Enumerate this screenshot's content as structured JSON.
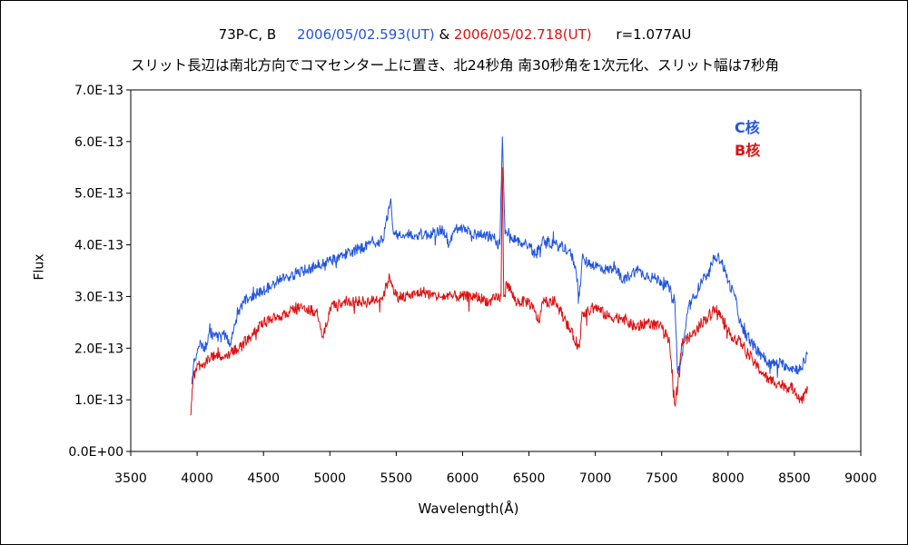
{
  "header": {
    "object": "73P-C, B",
    "date_c": "2006/05/02.593(UT)",
    "amp": "&",
    "date_b": "2006/05/02.718(UT)",
    "distance": "r=1.077AU",
    "subtitle": "スリット長辺は南北方向でコマセンター上に置き、北24秒角 南30秒角を1次元化、スリット幅は7秒角"
  },
  "colors": {
    "c": "#2255dd",
    "b": "#dd1111"
  },
  "chart_data": {
    "type": "line",
    "xlabel": "Wavelength(Å)",
    "ylabel": "Flux",
    "xlim": [
      3500,
      9000
    ],
    "ylim": [
      0,
      7e-13
    ],
    "xticks": [
      3500,
      4000,
      4500,
      5000,
      5500,
      6000,
      6500,
      7000,
      7500,
      8000,
      8500,
      9000
    ],
    "yticks": [
      0,
      1e-13,
      2e-13,
      3e-13,
      4e-13,
      5e-13,
      6e-13,
      7e-13
    ],
    "ytick_labels": [
      "0.0E+00",
      "1.0E-13",
      "2.0E-13",
      "3.0E-13",
      "4.0E-13",
      "5.0E-13",
      "6.0E-13",
      "7.0E-13"
    ],
    "legend": [
      "C核",
      "B核"
    ],
    "series": [
      {
        "name": "C核",
        "color": "#2255dd",
        "x": [
          3960,
          3980,
          4000,
          4030,
          4060,
          4100,
          4150,
          4200,
          4250,
          4300,
          4350,
          4400,
          4500,
          4600,
          4700,
          4800,
          4900,
          5000,
          5100,
          5200,
          5300,
          5400,
          5460,
          5480,
          5550,
          5650,
          5750,
          5850,
          5900,
          5950,
          6000,
          6100,
          6200,
          6280,
          6300,
          6320,
          6380,
          6500,
          6550,
          6600,
          6700,
          6800,
          6850,
          6880,
          6900,
          7000,
          7100,
          7150,
          7200,
          7300,
          7400,
          7500,
          7550,
          7600,
          7620,
          7650,
          7700,
          7750,
          7800,
          7850,
          7900,
          7950,
          8000,
          8050,
          8100,
          8200,
          8250,
          8300,
          8400,
          8500,
          8550,
          8600
        ],
        "y": [
          1.3e-13,
          1.8e-13,
          1.9e-13,
          2.1e-13,
          2e-13,
          2.3e-13,
          2.2e-13,
          2.3e-13,
          2.1e-13,
          2.6e-13,
          2.9e-13,
          3e-13,
          3.1e-13,
          3.3e-13,
          3.4e-13,
          3.5e-13,
          3.6e-13,
          3.7e-13,
          3.8e-13,
          3.9e-13,
          4e-13,
          4.1e-13,
          4.9e-13,
          4.2e-13,
          4.2e-13,
          4.2e-13,
          4.2e-13,
          4.3e-13,
          4e-13,
          4.3e-13,
          4.3e-13,
          4.2e-13,
          4.2e-13,
          4e-13,
          6.1e-13,
          4.2e-13,
          4.1e-13,
          4e-13,
          3.8e-13,
          4.1e-13,
          4e-13,
          3.9e-13,
          3.6e-13,
          3e-13,
          3.7e-13,
          3.6e-13,
          3.5e-13,
          3.6e-13,
          3.3e-13,
          3.5e-13,
          3.4e-13,
          3.3e-13,
          3.2e-13,
          2.9e-13,
          1.5e-13,
          1.8e-13,
          2.8e-13,
          3e-13,
          3.3e-13,
          3.4e-13,
          3.8e-13,
          3.7e-13,
          3.3e-13,
          3e-13,
          2.4e-13,
          2e-13,
          1.9e-13,
          1.7e-13,
          1.7e-13,
          1.6e-13,
          1.6e-13,
          1.9e-13
        ]
      },
      {
        "name": "B核",
        "color": "#dd1111",
        "x": [
          3950,
          3960,
          3970,
          3990,
          4000,
          4050,
          4100,
          4150,
          4200,
          4250,
          4300,
          4400,
          4500,
          4600,
          4700,
          4800,
          4900,
          4950,
          5000,
          5100,
          5200,
          5300,
          5400,
          5450,
          5500,
          5600,
          5700,
          5800,
          6000,
          6100,
          6200,
          6290,
          6300,
          6310,
          6330,
          6400,
          6500,
          6580,
          6600,
          6700,
          6880,
          6900,
          6950,
          7000,
          7100,
          7200,
          7300,
          7400,
          7500,
          7560,
          7600,
          7620,
          7650,
          7700,
          7750,
          7800,
          7850,
          7900,
          7950,
          8000,
          8100,
          8200,
          8300,
          8400,
          8500,
          8550,
          8600
        ],
        "y": [
          7e-14,
          1e-13,
          1.4e-13,
          1.6e-13,
          1.7e-13,
          1.7e-13,
          1.8e-13,
          1.9e-13,
          1.8e-13,
          1.9e-13,
          2e-13,
          2.2e-13,
          2.5e-13,
          2.6e-13,
          2.7e-13,
          2.8e-13,
          2.7e-13,
          2.2e-13,
          2.8e-13,
          2.9e-13,
          2.9e-13,
          2.9e-13,
          3e-13,
          3.4e-13,
          3e-13,
          3e-13,
          3.1e-13,
          3e-13,
          3e-13,
          3e-13,
          2.9e-13,
          3e-13,
          5.5e-13,
          3e-13,
          3.3e-13,
          2.9e-13,
          2.9e-13,
          2.5e-13,
          2.9e-13,
          2.9e-13,
          2e-13,
          2.7e-13,
          2.7e-13,
          2.8e-13,
          2.6e-13,
          2.6e-13,
          2.4e-13,
          2.5e-13,
          2.4e-13,
          2.1e-13,
          9e-14,
          1.2e-13,
          2.1e-13,
          2.2e-13,
          2.3e-13,
          2.5e-13,
          2.6e-13,
          2.8e-13,
          2.6e-13,
          2.3e-13,
          2.1e-13,
          1.7e-13,
          1.4e-13,
          1.3e-13,
          1.2e-13,
          1e-13,
          1.2e-13
        ]
      }
    ]
  }
}
